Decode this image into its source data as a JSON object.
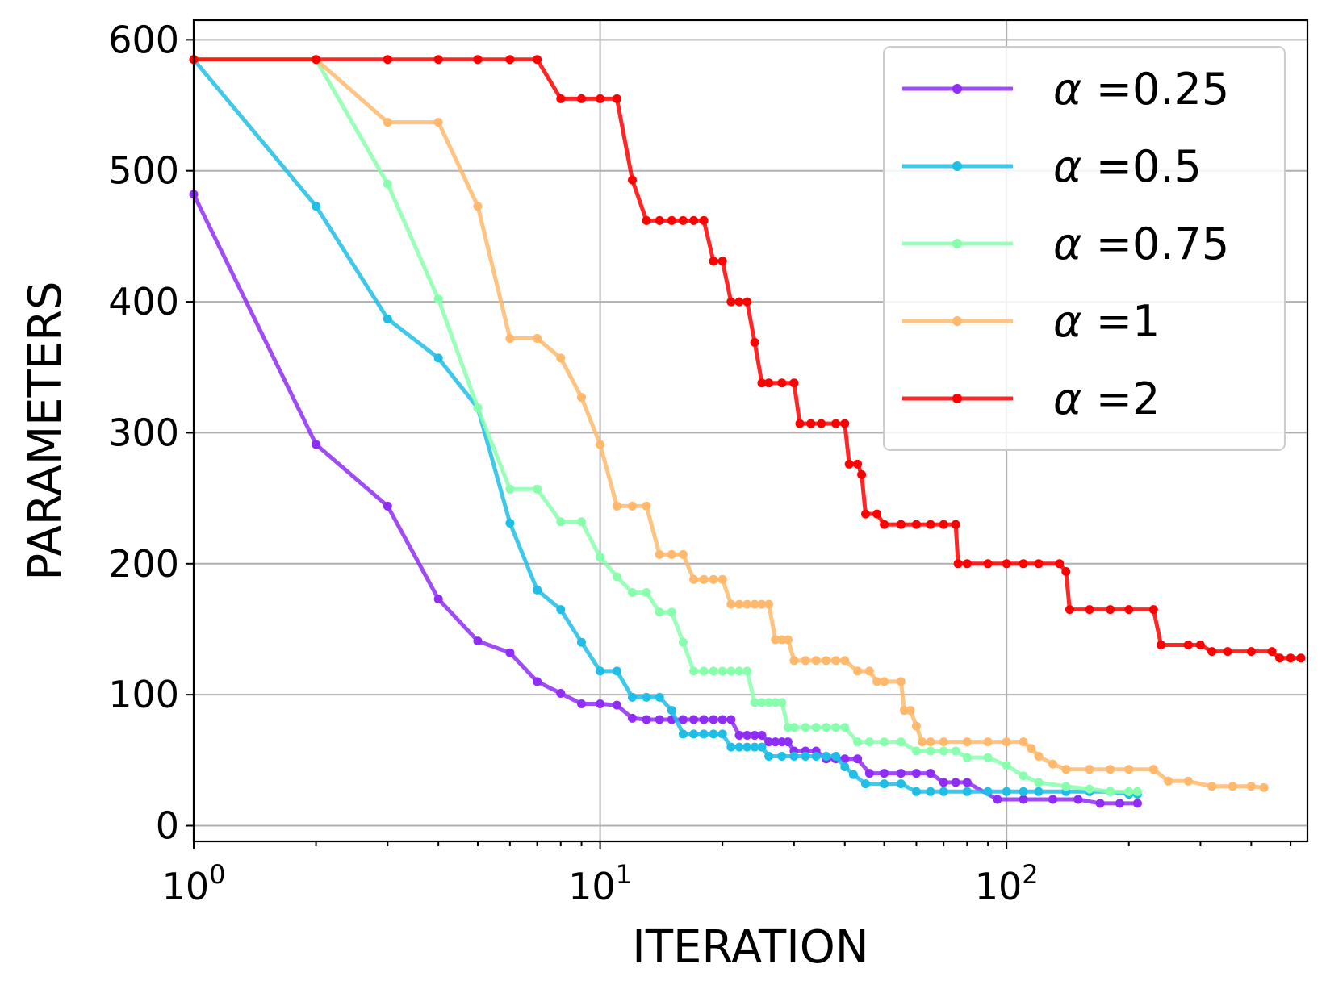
{
  "chart_data": {
    "type": "line",
    "xscale": "log",
    "xlim": [
      1,
      550
    ],
    "ylim": [
      -12,
      615
    ],
    "xlabel": "ITERATION",
    "ylabel": "PARAMETERS",
    "grid": true,
    "legend_position": "top-right",
    "x_ticks": [
      {
        "value": 1,
        "base": "10",
        "exp": "0"
      },
      {
        "value": 10,
        "base": "10",
        "exp": "1"
      },
      {
        "value": 100,
        "base": "10",
        "exp": "2"
      }
    ],
    "y_ticks": [
      {
        "value": 0,
        "label": "0"
      },
      {
        "value": 100,
        "label": "100"
      },
      {
        "value": 200,
        "label": "200"
      },
      {
        "value": 300,
        "label": "300"
      },
      {
        "value": 400,
        "label": "400"
      },
      {
        "value": 500,
        "label": "500"
      },
      {
        "value": 600,
        "label": "600"
      }
    ],
    "series": [
      {
        "name": "α =0.25",
        "symbol": "α",
        "suffix": " =0.25",
        "color": "#8f2cf5",
        "points": [
          [
            1,
            482
          ],
          [
            2,
            291
          ],
          [
            3,
            244
          ],
          [
            4,
            173
          ],
          [
            5,
            141
          ],
          [
            6,
            132
          ],
          [
            7,
            110
          ],
          [
            8,
            101
          ],
          [
            9,
            93
          ],
          [
            10,
            93
          ],
          [
            11,
            92
          ],
          [
            12,
            82
          ],
          [
            13,
            81
          ],
          [
            14,
            81
          ],
          [
            15,
            81
          ],
          [
            16,
            81
          ],
          [
            17,
            81
          ],
          [
            18,
            81
          ],
          [
            19,
            81
          ],
          [
            20,
            81
          ],
          [
            21,
            81
          ],
          [
            22,
            69
          ],
          [
            23,
            69
          ],
          [
            24,
            69
          ],
          [
            25,
            69
          ],
          [
            26,
            64
          ],
          [
            27,
            64
          ],
          [
            28,
            64
          ],
          [
            29,
            64
          ],
          [
            30,
            57
          ],
          [
            32,
            57
          ],
          [
            34,
            57
          ],
          [
            36,
            51
          ],
          [
            38,
            51
          ],
          [
            40,
            51
          ],
          [
            43,
            51
          ],
          [
            46,
            40
          ],
          [
            50,
            40
          ],
          [
            55,
            40
          ],
          [
            60,
            40
          ],
          [
            65,
            40
          ],
          [
            70,
            33
          ],
          [
            75,
            33
          ],
          [
            80,
            33
          ],
          [
            95,
            20
          ],
          [
            110,
            20
          ],
          [
            130,
            20
          ],
          [
            150,
            20
          ],
          [
            170,
            17
          ],
          [
            190,
            17
          ],
          [
            210,
            17
          ]
        ]
      },
      {
        "name": "α =0.5",
        "symbol": "α",
        "suffix": " =0.5",
        "color": "#1ebee6",
        "points": [
          [
            1,
            585
          ],
          [
            2,
            473
          ],
          [
            3,
            387
          ],
          [
            4,
            357
          ],
          [
            5,
            319
          ],
          [
            6,
            231
          ],
          [
            7,
            180
          ],
          [
            8,
            165
          ],
          [
            9,
            140
          ],
          [
            10,
            118
          ],
          [
            11,
            118
          ],
          [
            12,
            98
          ],
          [
            13,
            98
          ],
          [
            14,
            98
          ],
          [
            15,
            88
          ],
          [
            16,
            70
          ],
          [
            17,
            70
          ],
          [
            18,
            70
          ],
          [
            19,
            70
          ],
          [
            20,
            70
          ],
          [
            21,
            60
          ],
          [
            22,
            60
          ],
          [
            23,
            60
          ],
          [
            24,
            60
          ],
          [
            25,
            60
          ],
          [
            26,
            53
          ],
          [
            28,
            53
          ],
          [
            30,
            53
          ],
          [
            32,
            53
          ],
          [
            34,
            53
          ],
          [
            36,
            53
          ],
          [
            38,
            53
          ],
          [
            40,
            45
          ],
          [
            42,
            39
          ],
          [
            45,
            32
          ],
          [
            50,
            32
          ],
          [
            55,
            32
          ],
          [
            60,
            26
          ],
          [
            65,
            26
          ],
          [
            70,
            26
          ],
          [
            80,
            26
          ],
          [
            90,
            26
          ],
          [
            100,
            26
          ],
          [
            110,
            26
          ],
          [
            120,
            26
          ],
          [
            140,
            26
          ],
          [
            160,
            26
          ],
          [
            180,
            26
          ],
          [
            200,
            24
          ],
          [
            210,
            24
          ]
        ]
      },
      {
        "name": "α =0.75",
        "symbol": "α",
        "suffix": " =0.75",
        "color": "#88ffad",
        "points": [
          [
            1,
            585
          ],
          [
            2,
            585
          ],
          [
            3,
            490
          ],
          [
            4,
            402
          ],
          [
            5,
            319
          ],
          [
            6,
            257
          ],
          [
            7,
            257
          ],
          [
            8,
            232
          ],
          [
            9,
            232
          ],
          [
            10,
            205
          ],
          [
            11,
            190
          ],
          [
            12,
            178
          ],
          [
            13,
            178
          ],
          [
            14,
            163
          ],
          [
            15,
            163
          ],
          [
            16,
            140
          ],
          [
            17,
            118
          ],
          [
            18,
            118
          ],
          [
            19,
            118
          ],
          [
            20,
            118
          ],
          [
            21,
            118
          ],
          [
            22,
            118
          ],
          [
            23,
            118
          ],
          [
            24,
            94
          ],
          [
            25,
            94
          ],
          [
            26,
            94
          ],
          [
            27,
            94
          ],
          [
            28,
            94
          ],
          [
            29,
            75
          ],
          [
            30,
            75
          ],
          [
            32,
            75
          ],
          [
            34,
            75
          ],
          [
            36,
            75
          ],
          [
            38,
            75
          ],
          [
            40,
            75
          ],
          [
            43,
            64
          ],
          [
            46,
            64
          ],
          [
            50,
            64
          ],
          [
            55,
            64
          ],
          [
            60,
            57
          ],
          [
            65,
            57
          ],
          [
            70,
            57
          ],
          [
            75,
            57
          ],
          [
            80,
            52
          ],
          [
            90,
            52
          ],
          [
            100,
            46
          ],
          [
            110,
            38
          ],
          [
            120,
            33
          ],
          [
            140,
            30
          ],
          [
            160,
            28
          ],
          [
            180,
            26
          ],
          [
            200,
            26
          ],
          [
            210,
            26
          ]
        ]
      },
      {
        "name": "α =1",
        "symbol": "α",
        "suffix": " =1",
        "color": "#ffb86c",
        "points": [
          [
            1,
            585
          ],
          [
            2,
            585
          ],
          [
            3,
            537
          ],
          [
            4,
            537
          ],
          [
            5,
            473
          ],
          [
            6,
            372
          ],
          [
            7,
            372
          ],
          [
            8,
            357
          ],
          [
            9,
            327
          ],
          [
            10,
            291
          ],
          [
            11,
            244
          ],
          [
            12,
            244
          ],
          [
            13,
            244
          ],
          [
            14,
            207
          ],
          [
            15,
            207
          ],
          [
            16,
            207
          ],
          [
            17,
            188
          ],
          [
            18,
            188
          ],
          [
            19,
            188
          ],
          [
            20,
            188
          ],
          [
            21,
            169
          ],
          [
            22,
            169
          ],
          [
            23,
            169
          ],
          [
            24,
            169
          ],
          [
            25,
            169
          ],
          [
            26,
            169
          ],
          [
            27,
            142
          ],
          [
            28,
            142
          ],
          [
            29,
            142
          ],
          [
            30,
            126
          ],
          [
            32,
            126
          ],
          [
            34,
            126
          ],
          [
            36,
            126
          ],
          [
            38,
            126
          ],
          [
            40,
            126
          ],
          [
            43,
            118
          ],
          [
            46,
            118
          ],
          [
            48,
            110
          ],
          [
            50,
            110
          ],
          [
            55,
            110
          ],
          [
            56,
            88
          ],
          [
            58,
            88
          ],
          [
            60,
            76
          ],
          [
            62,
            64
          ],
          [
            65,
            64
          ],
          [
            70,
            64
          ],
          [
            80,
            64
          ],
          [
            90,
            64
          ],
          [
            100,
            64
          ],
          [
            110,
            64
          ],
          [
            115,
            59
          ],
          [
            120,
            53
          ],
          [
            130,
            47
          ],
          [
            140,
            43
          ],
          [
            160,
            43
          ],
          [
            180,
            43
          ],
          [
            200,
            43
          ],
          [
            230,
            43
          ],
          [
            250,
            34
          ],
          [
            280,
            34
          ],
          [
            320,
            30
          ],
          [
            360,
            30
          ],
          [
            400,
            30
          ],
          [
            430,
            29
          ]
        ]
      },
      {
        "name": "α =2",
        "symbol": "α",
        "suffix": " =2",
        "color": "#ff0000",
        "points": [
          [
            1,
            585
          ],
          [
            2,
            585
          ],
          [
            3,
            585
          ],
          [
            4,
            585
          ],
          [
            5,
            585
          ],
          [
            6,
            585
          ],
          [
            7,
            585
          ],
          [
            8,
            555
          ],
          [
            9,
            555
          ],
          [
            10,
            555
          ],
          [
            11,
            555
          ],
          [
            12,
            493
          ],
          [
            13,
            462
          ],
          [
            14,
            462
          ],
          [
            15,
            462
          ],
          [
            16,
            462
          ],
          [
            17,
            462
          ],
          [
            18,
            462
          ],
          [
            19,
            431
          ],
          [
            20,
            431
          ],
          [
            21,
            400
          ],
          [
            22,
            400
          ],
          [
            23,
            400
          ],
          [
            24,
            369
          ],
          [
            25,
            338
          ],
          [
            26,
            338
          ],
          [
            28,
            338
          ],
          [
            30,
            338
          ],
          [
            31,
            307
          ],
          [
            33,
            307
          ],
          [
            35,
            307
          ],
          [
            38,
            307
          ],
          [
            40,
            307
          ],
          [
            41,
            276
          ],
          [
            43,
            276
          ],
          [
            44,
            268
          ],
          [
            45,
            238
          ],
          [
            48,
            238
          ],
          [
            50,
            230
          ],
          [
            55,
            230
          ],
          [
            60,
            230
          ],
          [
            65,
            230
          ],
          [
            70,
            230
          ],
          [
            75,
            230
          ],
          [
            76,
            200
          ],
          [
            80,
            200
          ],
          [
            90,
            200
          ],
          [
            100,
            200
          ],
          [
            110,
            200
          ],
          [
            120,
            200
          ],
          [
            135,
            200
          ],
          [
            140,
            194
          ],
          [
            143,
            165
          ],
          [
            160,
            165
          ],
          [
            180,
            165
          ],
          [
            200,
            165
          ],
          [
            230,
            165
          ],
          [
            240,
            138
          ],
          [
            280,
            138
          ],
          [
            300,
            138
          ],
          [
            320,
            133
          ],
          [
            350,
            133
          ],
          [
            400,
            133
          ],
          [
            450,
            133
          ],
          [
            470,
            128
          ],
          [
            500,
            128
          ],
          [
            530,
            128
          ]
        ]
      }
    ]
  }
}
